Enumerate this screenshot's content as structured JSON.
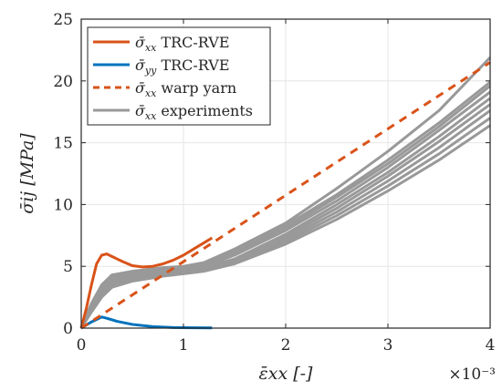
{
  "chart_data": {
    "type": "line",
    "title": "",
    "xlabel": "ε̄xx [-]",
    "ylabel": "σ̄ij [MPa]",
    "x_exponent_label": "×10⁻³",
    "xlim": [
      0,
      4
    ],
    "ylim": [
      0,
      25
    ],
    "xticks": [
      0,
      1,
      2,
      3,
      4
    ],
    "xtick_labels": [
      "0",
      "1",
      "2",
      "3",
      "4"
    ],
    "yticks": [
      0,
      5,
      10,
      15,
      20,
      25
    ],
    "ytick_labels": [
      "0",
      "5",
      "10",
      "15",
      "20",
      "25"
    ],
    "grid": true,
    "legend_position": "top-left",
    "colors": {
      "rve": "#D95319",
      "rve_yy": "#0072BD",
      "warp": "#D95319",
      "experiments": "#999999",
      "axes": "#262626",
      "grid": "#e6e6e6"
    },
    "series": [
      {
        "name": "σ̄xx TRC-RVE",
        "style": "solid",
        "color": "#D95319",
        "points": [
          [
            0,
            0
          ],
          [
            0.05,
            1.6
          ],
          [
            0.1,
            3.5
          ],
          [
            0.15,
            5.2
          ],
          [
            0.2,
            5.9
          ],
          [
            0.25,
            6.0
          ],
          [
            0.3,
            5.8
          ],
          [
            0.4,
            5.4
          ],
          [
            0.5,
            5.05
          ],
          [
            0.6,
            4.95
          ],
          [
            0.7,
            5.0
          ],
          [
            0.8,
            5.2
          ],
          [
            0.9,
            5.5
          ],
          [
            1.0,
            5.9
          ],
          [
            1.1,
            6.4
          ],
          [
            1.2,
            6.9
          ],
          [
            1.28,
            7.3
          ]
        ]
      },
      {
        "name": "σ̄yy TRC-RVE",
        "style": "solid",
        "color": "#0072BD",
        "points": [
          [
            0,
            0
          ],
          [
            0.1,
            0.5
          ],
          [
            0.2,
            0.9
          ],
          [
            0.25,
            0.8
          ],
          [
            0.35,
            0.55
          ],
          [
            0.5,
            0.3
          ],
          [
            0.7,
            0.12
          ],
          [
            0.9,
            0.05
          ],
          [
            1.1,
            0.03
          ],
          [
            1.28,
            0.02
          ]
        ]
      },
      {
        "name": "σ̄xx warp yarn",
        "style": "dashed",
        "color": "#D95319",
        "points": [
          [
            0,
            0
          ],
          [
            4,
            21.5
          ]
        ]
      },
      {
        "name": "σ̄xx experiments",
        "style": "solid",
        "color": "#999999",
        "group": "experiments",
        "points": [
          [
            0,
            0
          ],
          [
            0.1,
            2.0
          ],
          [
            0.2,
            3.5
          ],
          [
            0.3,
            4.3
          ],
          [
            0.5,
            4.6
          ],
          [
            0.8,
            4.9
          ],
          [
            1.0,
            5.0
          ],
          [
            1.2,
            5.3
          ],
          [
            1.5,
            6.4
          ],
          [
            2.0,
            8.5
          ],
          [
            2.5,
            11.3
          ],
          [
            3.0,
            14.3
          ],
          [
            3.5,
            17.6
          ],
          [
            4.0,
            21.9
          ]
        ]
      },
      {
        "group": "experiments",
        "style": "solid",
        "color": "#999999",
        "points": [
          [
            0,
            0
          ],
          [
            0.1,
            1.8
          ],
          [
            0.2,
            3.2
          ],
          [
            0.3,
            4.0
          ],
          [
            0.5,
            4.4
          ],
          [
            0.8,
            4.7
          ],
          [
            1.0,
            4.8
          ],
          [
            1.2,
            5.1
          ],
          [
            1.5,
            6.1
          ],
          [
            2.0,
            8.1
          ],
          [
            2.5,
            10.6
          ],
          [
            3.0,
            13.3
          ],
          [
            3.5,
            16.3
          ],
          [
            4.0,
            19.6
          ]
        ]
      },
      {
        "group": "experiments",
        "style": "solid",
        "color": "#999999",
        "points": [
          [
            0,
            0
          ],
          [
            0.1,
            1.9
          ],
          [
            0.2,
            3.4
          ],
          [
            0.3,
            4.3
          ],
          [
            0.5,
            4.5
          ],
          [
            0.8,
            4.6
          ],
          [
            1.0,
            4.7
          ],
          [
            1.2,
            5.0
          ],
          [
            1.5,
            5.9
          ],
          [
            2.0,
            7.9
          ],
          [
            2.5,
            10.3
          ],
          [
            3.0,
            13.0
          ],
          [
            3.5,
            16.0
          ],
          [
            4.0,
            19.1
          ]
        ]
      },
      {
        "group": "experiments",
        "style": "solid",
        "color": "#999999",
        "points": [
          [
            0,
            0
          ],
          [
            0.1,
            1.7
          ],
          [
            0.2,
            3.1
          ],
          [
            0.3,
            3.9
          ],
          [
            0.5,
            4.3
          ],
          [
            0.8,
            4.6
          ],
          [
            1.0,
            4.7
          ],
          [
            1.2,
            4.9
          ],
          [
            1.5,
            5.6
          ],
          [
            2.0,
            7.6
          ],
          [
            2.5,
            10.0
          ],
          [
            3.0,
            12.6
          ],
          [
            3.5,
            15.5
          ],
          [
            4.0,
            18.6
          ]
        ]
      },
      {
        "group": "experiments",
        "style": "solid",
        "color": "#999999",
        "points": [
          [
            0,
            0
          ],
          [
            0.1,
            1.6
          ],
          [
            0.2,
            2.9
          ],
          [
            0.3,
            3.7
          ],
          [
            0.5,
            4.2
          ],
          [
            0.8,
            4.5
          ],
          [
            1.0,
            4.6
          ],
          [
            1.2,
            4.8
          ],
          [
            1.5,
            5.5
          ],
          [
            2.0,
            7.4
          ],
          [
            2.5,
            9.7
          ],
          [
            3.0,
            12.3
          ],
          [
            3.5,
            15.1
          ],
          [
            4.0,
            18.1
          ]
        ]
      },
      {
        "group": "experiments",
        "style": "solid",
        "color": "#999999",
        "points": [
          [
            0,
            0
          ],
          [
            0.1,
            1.5
          ],
          [
            0.2,
            2.7
          ],
          [
            0.3,
            3.5
          ],
          [
            0.5,
            4.0
          ],
          [
            0.8,
            4.4
          ],
          [
            1.0,
            4.5
          ],
          [
            1.2,
            4.7
          ],
          [
            1.5,
            5.4
          ],
          [
            2.0,
            7.2
          ],
          [
            2.5,
            9.4
          ],
          [
            3.0,
            11.9
          ],
          [
            3.5,
            14.6
          ],
          [
            4.0,
            17.6
          ]
        ]
      },
      {
        "group": "experiments",
        "style": "solid",
        "color": "#999999",
        "points": [
          [
            0,
            0
          ],
          [
            0.1,
            1.4
          ],
          [
            0.2,
            2.6
          ],
          [
            0.3,
            3.4
          ],
          [
            0.5,
            3.9
          ],
          [
            0.8,
            4.3
          ],
          [
            1.0,
            4.5
          ],
          [
            1.2,
            4.7
          ],
          [
            1.5,
            5.3
          ],
          [
            2.0,
            7.0
          ],
          [
            2.5,
            9.1
          ],
          [
            3.0,
            11.5
          ],
          [
            3.5,
            14.1
          ],
          [
            4.0,
            17.0
          ]
        ]
      },
      {
        "group": "experiments",
        "style": "solid",
        "color": "#999999",
        "points": [
          [
            0,
            0
          ],
          [
            0.1,
            1.3
          ],
          [
            0.2,
            2.5
          ],
          [
            0.3,
            3.3
          ],
          [
            0.5,
            3.8
          ],
          [
            0.8,
            4.2
          ],
          [
            1.0,
            4.4
          ],
          [
            1.2,
            4.6
          ],
          [
            1.5,
            5.2
          ],
          [
            2.0,
            6.8
          ],
          [
            2.5,
            8.8
          ],
          [
            3.0,
            11.1
          ],
          [
            3.5,
            13.6
          ],
          [
            4.0,
            16.4
          ]
        ]
      },
      {
        "group": "experiments",
        "style": "solid",
        "color": "#999999",
        "points": [
          [
            0,
            0
          ],
          [
            0.1,
            1.9
          ],
          [
            0.2,
            3.3
          ],
          [
            0.3,
            4.1
          ],
          [
            0.5,
            4.4
          ],
          [
            0.8,
            4.8
          ],
          [
            1.0,
            4.9
          ],
          [
            1.2,
            5.2
          ],
          [
            1.5,
            6.2
          ],
          [
            2.0,
            8.3
          ],
          [
            2.5,
            10.8
          ],
          [
            3.0,
            13.6
          ],
          [
            3.5,
            16.6
          ],
          [
            4.0,
            19.9
          ]
        ]
      }
    ],
    "legend": [
      {
        "symbol": "σ̄",
        "sub": "xx",
        "text": " TRC-RVE",
        "color": "#D95319",
        "style": "solid"
      },
      {
        "symbol": "σ̄",
        "sub": "yy",
        "text": " TRC-RVE",
        "color": "#0072BD",
        "style": "solid"
      },
      {
        "symbol": "σ̄",
        "sub": "xx",
        "text": " warp yarn",
        "color": "#D95319",
        "style": "dashed"
      },
      {
        "symbol": "σ̄",
        "sub": "xx",
        "text": " experiments",
        "color": "#999999",
        "style": "solid"
      }
    ]
  }
}
